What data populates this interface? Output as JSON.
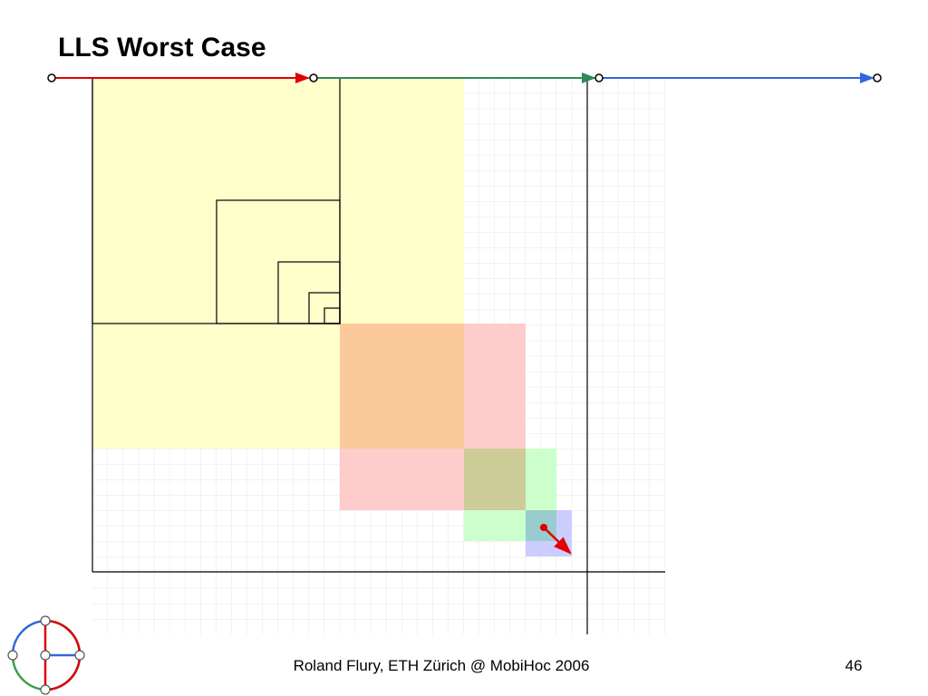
{
  "header": {
    "title": "LLS Worst Case"
  },
  "footer": {
    "author": "Roland Flury, ETH Zürich @ MobiHoc 2006",
    "page": "46"
  }
}
